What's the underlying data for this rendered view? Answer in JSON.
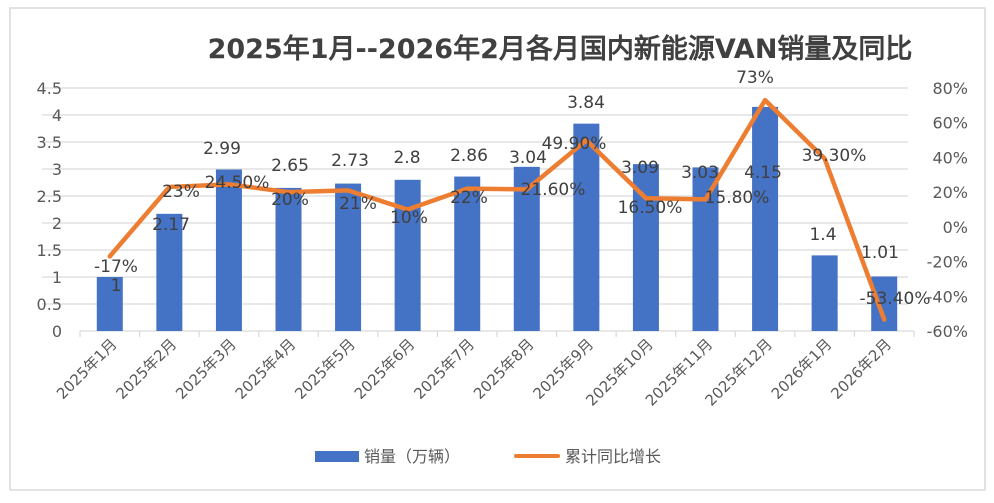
{
  "chart_data": {
    "type": "bar+line",
    "title": "2025年1月--2026年2月各月国内新能源VAN销量及同比",
    "categories": [
      "2025年1月",
      "2025年2月",
      "2025年3月",
      "2025年4月",
      "2025年5月",
      "2025年6月",
      "2025年7月",
      "2025年8月",
      "2025年9月",
      "2025年10月",
      "2025年11月",
      "2025年12月",
      "2026年1月",
      "2026年2月"
    ],
    "series": [
      {
        "name": "销量（万辆）",
        "type": "bar",
        "axis": "left",
        "color": "#4472C4",
        "values": [
          1,
          2.17,
          2.99,
          2.65,
          2.73,
          2.8,
          2.86,
          3.04,
          3.84,
          3.09,
          3.03,
          4.15,
          1.4,
          1.01
        ],
        "labels": [
          "1",
          "2.17",
          "2.99",
          "2.65",
          "2.73",
          "2.8",
          "2.86",
          "3.04",
          "3.84",
          "3.09",
          "3.03",
          "4.15",
          "1.4",
          "1.01"
        ]
      },
      {
        "name": "累计同比增长",
        "type": "line",
        "axis": "right",
        "color": "#ED7D31",
        "values": [
          -17,
          23,
          24.5,
          20,
          21,
          10,
          22,
          21.6,
          49.9,
          16.5,
          15.8,
          73,
          39.3,
          -53.4
        ],
        "labels": [
          "-17%",
          "23%",
          "24.50%",
          "20%",
          "21%",
          "10%",
          "22%",
          "21.60%",
          "49.90%",
          "16.50%",
          "15.80%",
          "73%",
          "39.30%",
          "-53.40%"
        ]
      }
    ],
    "y_left": {
      "range": [
        0,
        4.5
      ],
      "ticks": [
        "0",
        "0.5",
        "1",
        "1.5",
        "2",
        "2.5",
        "3",
        "3.5",
        "4",
        "4.5"
      ]
    },
    "y_right": {
      "range": [
        -60,
        80
      ],
      "ticks": [
        "-60%",
        "-40%",
        "-20%",
        "0%",
        "20%",
        "40%",
        "60%",
        "80%"
      ]
    },
    "grid": true,
    "legend": "bottom"
  }
}
